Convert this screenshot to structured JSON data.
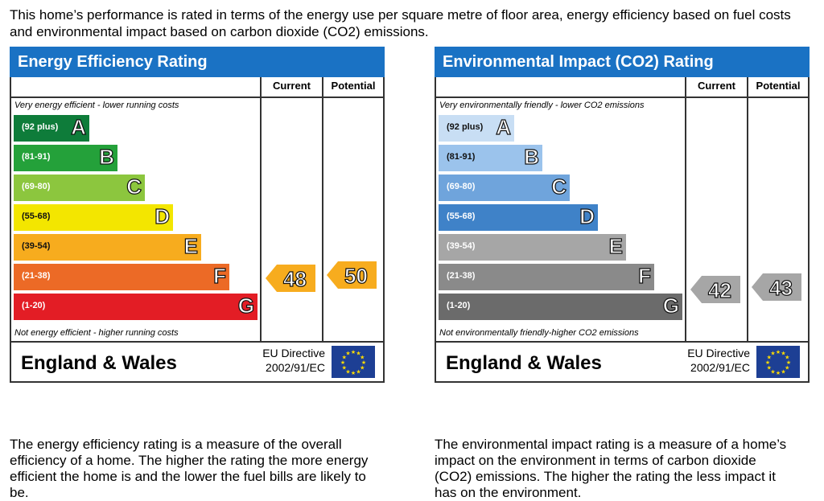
{
  "intro": "This home’s performance is rated in terms of the energy use per square metre of floor area, energy efficiency based on fuel costs and environmental impact based on carbon dioxide (CO2) emissions.",
  "energy": {
    "title": "Energy Efficiency Rating",
    "current_header": "Current",
    "potential_header": "Potential",
    "top_label": "Very energy efficient - lower running costs",
    "bottom_label": "Not energy efficient - higher running costs",
    "bands": [
      {
        "range": "(92 plus)",
        "letter": "A",
        "color": "#0e7c3a"
      },
      {
        "range": "(81-91)",
        "letter": "B",
        "color": "#24a13a"
      },
      {
        "range": "(69-80)",
        "letter": "C",
        "color": "#8cc63e"
      },
      {
        "range": "(55-68)",
        "letter": "D",
        "color": "#f3e600"
      },
      {
        "range": "(39-54)",
        "letter": "E",
        "color": "#f7ac1e"
      },
      {
        "range": "(21-38)",
        "letter": "F",
        "color": "#ec6a26"
      },
      {
        "range": "(1-20)",
        "letter": "G",
        "color": "#e31d25"
      }
    ],
    "current_value": "48",
    "potential_value": "50",
    "arrow_color": "#f7ac1e",
    "country": "England & Wales",
    "directive_line1": "EU Directive",
    "directive_line2": "2002/91/EC",
    "description": "The energy efficiency rating is a measure of the overall efficiency of a home. The higher the rating the more energy efficient the home is and the lower the fuel bills are likely to be."
  },
  "environment": {
    "title": "Environmental Impact (CO2) Rating",
    "current_header": "Current",
    "potential_header": "Potential",
    "top_label": "Very environmentally friendly - lower CO2 emissions",
    "bottom_label": "Not environmentally friendly-higher CO2 emissions",
    "bands": [
      {
        "range": "(92 plus)",
        "letter": "A",
        "color": "#c8def4"
      },
      {
        "range": "(81-91)",
        "letter": "B",
        "color": "#9bc3ec"
      },
      {
        "range": "(69-80)",
        "letter": "C",
        "color": "#6fa4dc"
      },
      {
        "range": "(55-68)",
        "letter": "D",
        "color": "#3f82c8"
      },
      {
        "range": "(39-54)",
        "letter": "E",
        "color": "#a6a6a6"
      },
      {
        "range": "(21-38)",
        "letter": "F",
        "color": "#8a8a8a"
      },
      {
        "range": "(1-20)",
        "letter": "G",
        "color": "#6b6b6b"
      }
    ],
    "current_value": "42",
    "potential_value": "43",
    "arrow_color": "#a6a6a6",
    "country": "England & Wales",
    "directive_line1": "EU Directive",
    "directive_line2": "2002/91/EC",
    "description": "The environmental impact rating is a measure of a home’s impact on the environment in terms of carbon dioxide (CO2) emissions. The higher the rating the less impact it has on the environment."
  }
}
